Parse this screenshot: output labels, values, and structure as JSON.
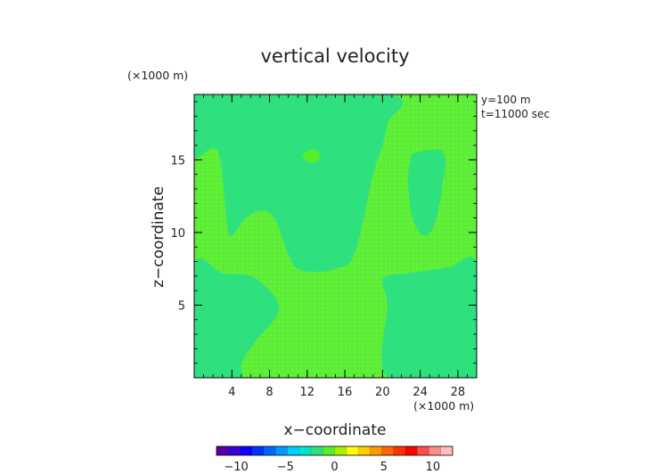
{
  "chart_data": {
    "type": "heatmap",
    "title": "vertical velocity",
    "xlabel": "x−coordinate",
    "ylabel": "z−coordinate",
    "x_unit": "(×1000 m)",
    "y_unit": "(×1000 m)",
    "annotations": [
      "y=100 m",
      "t=11000 sec"
    ],
    "xlim": [
      0,
      30
    ],
    "ylim": [
      0,
      19.5
    ],
    "x_ticks": [
      4,
      8,
      12,
      16,
      20,
      24,
      28
    ],
    "y_ticks": [
      5,
      10,
      15
    ],
    "grid": false,
    "legend": "colorbar-bottom",
    "colors": {
      "background_field": "#55ef2c",
      "updraft_field": "#2fe07f",
      "frame": "#000000",
      "grid_line": "#dddddd"
    },
    "regions": [
      {
        "name": "upper-green-field",
        "value_range": [
          0,
          1
        ],
        "color": "#55ef2c"
      },
      {
        "name": "central-plume",
        "value_range": [
          -1,
          0
        ],
        "color": "#2fe07f",
        "outline": [
          [
            0,
            19.5
          ],
          [
            0,
            15.3
          ],
          [
            2.5,
            15.6
          ],
          [
            3.5,
            10.5
          ],
          [
            4,
            9.8
          ],
          [
            5.5,
            11
          ],
          [
            7,
            11.5
          ],
          [
            8.5,
            11
          ],
          [
            10,
            8.5
          ],
          [
            11,
            7.5
          ],
          [
            13,
            7.3
          ],
          [
            15,
            7.5
          ],
          [
            17,
            8.5
          ],
          [
            19,
            14
          ],
          [
            20,
            16
          ],
          [
            20.5,
            17.5
          ],
          [
            20.7,
            19.5
          ]
        ]
      },
      {
        "name": "small-cell",
        "value_range": [
          0,
          1
        ],
        "color": "#55ef2c",
        "outline": [
          [
            11.5,
            15.3
          ],
          [
            12.3,
            15.7
          ],
          [
            13.3,
            15.5
          ],
          [
            13.2,
            15
          ],
          [
            12.5,
            14.8
          ],
          [
            11.8,
            15
          ]
        ]
      },
      {
        "name": "right-cell",
        "value_range": [
          -1,
          0
        ],
        "color": "#2fe07f",
        "outline": [
          [
            23.5,
            15.5
          ],
          [
            26.5,
            15.5
          ],
          [
            26.3,
            13
          ],
          [
            25.5,
            10.5
          ],
          [
            24.3,
            9.8
          ],
          [
            23.2,
            11
          ],
          [
            22.7,
            13.5
          ],
          [
            23,
            15
          ]
        ]
      },
      {
        "name": "lower-field",
        "value_range": [
          -1,
          0
        ],
        "color": "#2fe07f",
        "outline": [
          [
            0,
            7.8
          ],
          [
            3,
            7.2
          ],
          [
            6,
            7
          ],
          [
            8,
            6
          ],
          [
            9,
            5
          ],
          [
            8.5,
            4
          ],
          [
            6.5,
            2.5
          ],
          [
            5,
            1
          ],
          [
            4.8,
            0
          ],
          [
            0,
            0
          ]
        ]
      },
      {
        "name": "lower-right-field",
        "value_range": [
          -1,
          0
        ],
        "color": "#2fe07f",
        "outline": [
          [
            20.6,
            0
          ],
          [
            20.5,
            5
          ],
          [
            20,
            6.5
          ],
          [
            20.5,
            7
          ],
          [
            24,
            7.3
          ],
          [
            27,
            7.6
          ],
          [
            30,
            7.8
          ],
          [
            30,
            0
          ]
        ]
      }
    ],
    "colorbar": {
      "ticks": [
        -10,
        -5,
        0,
        5,
        10
      ],
      "range": [
        -12,
        12
      ],
      "colors": [
        "#5a00a0",
        "#3a00d8",
        "#0b00ff",
        "#0033ff",
        "#0066ff",
        "#0099ff",
        "#00ccff",
        "#00e5cc",
        "#2fe07f",
        "#55ef2c",
        "#a8f000",
        "#ffff00",
        "#ffcc00",
        "#ff9900",
        "#ff6600",
        "#ff3300",
        "#ff0000",
        "#ff4d4d",
        "#ff8c8c",
        "#ffbfbf"
      ]
    }
  }
}
